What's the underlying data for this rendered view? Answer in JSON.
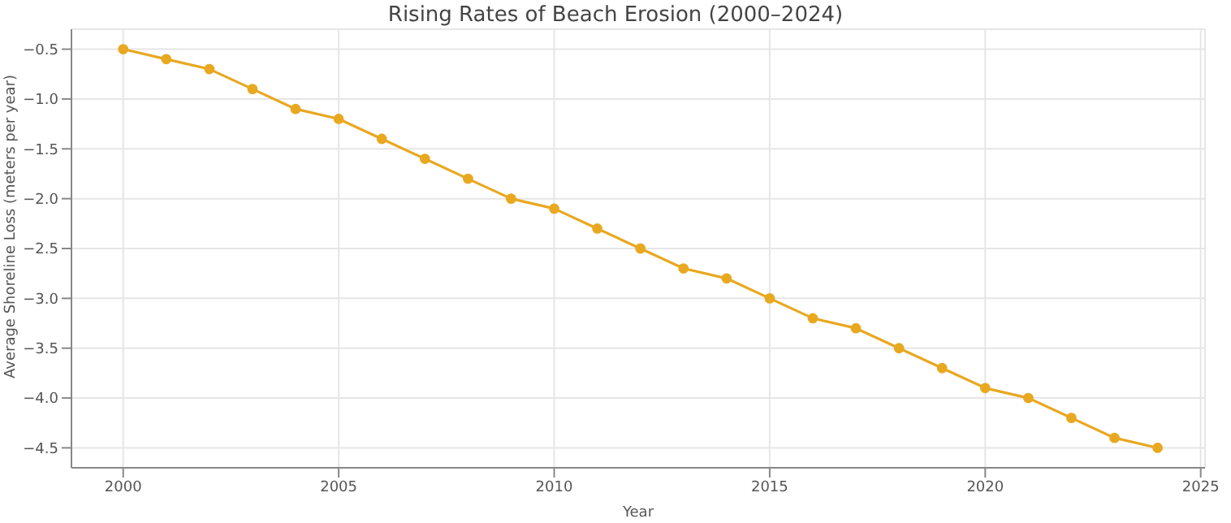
{
  "chart_data": {
    "type": "line",
    "title": "Rising Rates of Beach Erosion (2000–2024)",
    "xlabel": "Year",
    "ylabel": "Average Shoreline Loss (meters per year)",
    "x": [
      2000,
      2001,
      2002,
      2003,
      2004,
      2005,
      2006,
      2007,
      2008,
      2009,
      2010,
      2011,
      2012,
      2013,
      2014,
      2015,
      2016,
      2017,
      2018,
      2019,
      2020,
      2021,
      2022,
      2023,
      2024
    ],
    "series": [
      {
        "color": "#e8a820",
        "values": [
          -0.5,
          -0.6,
          -0.7,
          -0.9,
          -1.1,
          -1.2,
          -1.4,
          -1.6,
          -1.8,
          -2.0,
          -2.1,
          -2.3,
          -2.5,
          -2.7,
          -2.8,
          -3.0,
          -3.2,
          -3.3,
          -3.5,
          -3.7,
          -3.9,
          -4.0,
          -4.2,
          -4.4,
          -4.5
        ]
      }
    ],
    "xlim": [
      1998.8,
      2025.1
    ],
    "xticks": [
      2000,
      2005,
      2010,
      2015,
      2020,
      2025
    ],
    "ylim": [
      -4.7,
      -0.3
    ],
    "yticks": [
      {
        "value": -4.5,
        "label": "−4.5"
      },
      {
        "value": -4.0,
        "label": "−4.0"
      },
      {
        "value": -3.5,
        "label": "−3.5"
      },
      {
        "value": -3.0,
        "label": "−3.0"
      },
      {
        "value": -2.5,
        "label": "−2.5"
      },
      {
        "value": -2.0,
        "label": "−2.0"
      },
      {
        "value": -1.5,
        "label": "−1.5"
      },
      {
        "value": -1.0,
        "label": "−1.0"
      },
      {
        "value": -0.5,
        "label": "−0.5"
      }
    ],
    "grid": true,
    "marker": "circle",
    "line_style": "solid"
  }
}
